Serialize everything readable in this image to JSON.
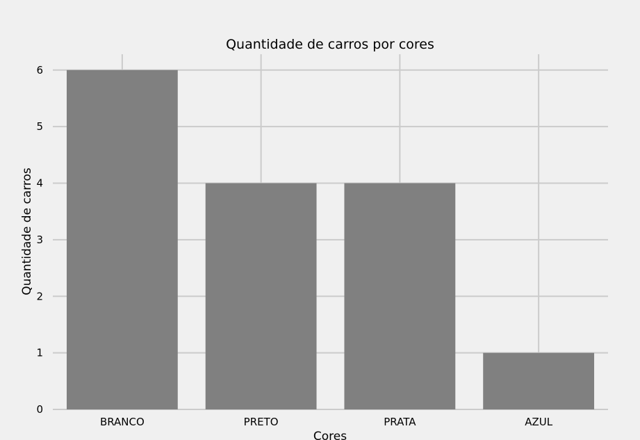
{
  "chart_data": {
    "type": "bar",
    "title": "Quantidade de carros por cores",
    "xlabel": "Cores",
    "ylabel": "Quantidade de carros",
    "categories": [
      "BRANCO",
      "PRETO",
      "PRATA",
      "AZUL"
    ],
    "values": [
      6,
      4,
      4,
      1
    ],
    "ylim": [
      0,
      6.28
    ],
    "yticks": [
      0,
      1,
      2,
      3,
      4,
      5,
      6
    ],
    "grid": true,
    "bar_color": "#808080",
    "background_color": "#f0f0f0",
    "grid_color": "#cbcbcb"
  }
}
